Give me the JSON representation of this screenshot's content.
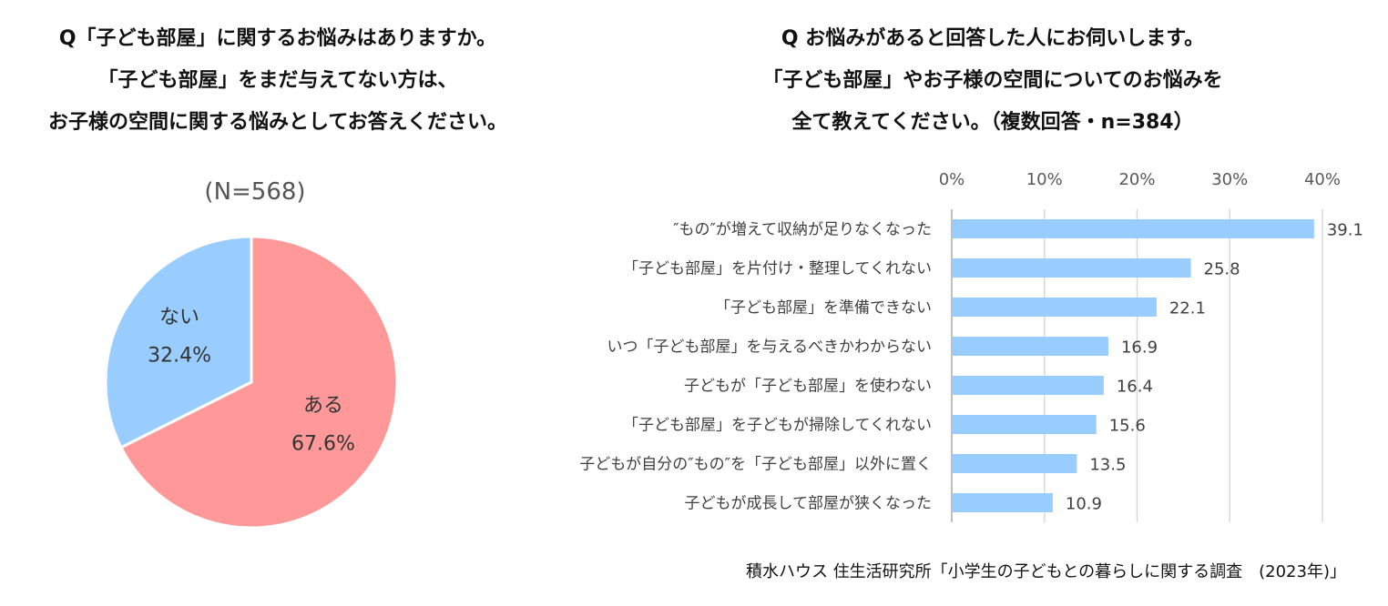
{
  "left": {
    "title_lines": [
      "Q「子ども部屋」に関するお悩みはありますか。",
      "「子ども部屋」をまだ与えてない方は、",
      "お子様の空間に関する悩みとしてお答えください。"
    ],
    "n_label": "(N=568)"
  },
  "right": {
    "title_lines": [
      "Q お悩みがあると回答した人にお伺いします。",
      "「子ども部屋」やお子様の空間についてのお悩みを",
      "全て教えてください。（複数回答・n=384）"
    ]
  },
  "source": "積水ハウス 住生活研究所「小学生の子どもとの暮らしに関する調査　(2023年)」",
  "chart_data": [
    {
      "type": "pie",
      "slices": [
        {
          "label": "ある",
          "value": 67.6,
          "value_label": "67.6%",
          "color": "#ff9999"
        },
        {
          "label": "ない",
          "value": 32.4,
          "value_label": "32.4%",
          "color": "#99ccff"
        }
      ]
    },
    {
      "type": "bar",
      "orientation": "horizontal",
      "categories": [
        "″もの″が増えて収納が足りなくなった",
        "「子ども部屋」を片付け・整理してくれない",
        "「子ども部屋」を準備できない",
        "いつ「子ども部屋」を与えるべきかわからない",
        "子どもが「子ども部屋」を使わない",
        "「子ども部屋」を子どもが掃除してくれない",
        "子どもが自分の″もの″を「子ども部屋」以外に置く",
        "子どもが成長して部屋が狭くなった"
      ],
      "values": [
        39.1,
        25.8,
        22.1,
        16.9,
        16.4,
        15.6,
        13.5,
        10.9
      ],
      "value_labels": [
        "39.1",
        "25.8",
        "22.1",
        "16.9",
        "16.4",
        "15.6",
        "13.5",
        "10.9"
      ],
      "xlim": [
        0,
        40
      ],
      "ticks": [
        0,
        10,
        20,
        30,
        40
      ],
      "tick_labels": [
        "0%",
        "10%",
        "20%",
        "30%",
        "40%"
      ],
      "axis_position": "top",
      "grid": true,
      "color": "#99ccff"
    }
  ]
}
